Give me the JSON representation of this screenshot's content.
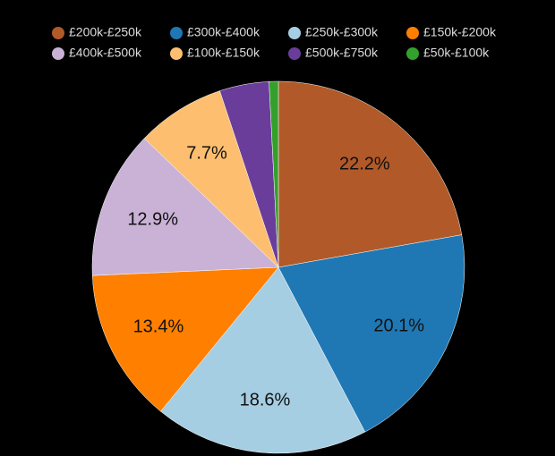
{
  "chart_data": {
    "type": "pie",
    "categories": [
      "£200k-£250k",
      "£300k-£400k",
      "£250k-£300k",
      "£150k-£200k",
      "£400k-£500k",
      "£100k-£150k",
      "£500k-£750k",
      "£50k-£100k"
    ],
    "values": [
      22.2,
      20.1,
      18.6,
      13.4,
      12.9,
      7.7,
      4.3,
      0.8
    ],
    "value_labels": [
      "22.2%",
      "20.1%",
      "18.6%",
      "13.4%",
      "12.9%",
      "7.7%",
      null,
      null
    ],
    "colors": [
      "#b15928",
      "#1f78b4",
      "#a6cee3",
      "#ff7f00",
      "#cab2d6",
      "#fdbf6f",
      "#6a3d9a",
      "#33a02c"
    ]
  }
}
